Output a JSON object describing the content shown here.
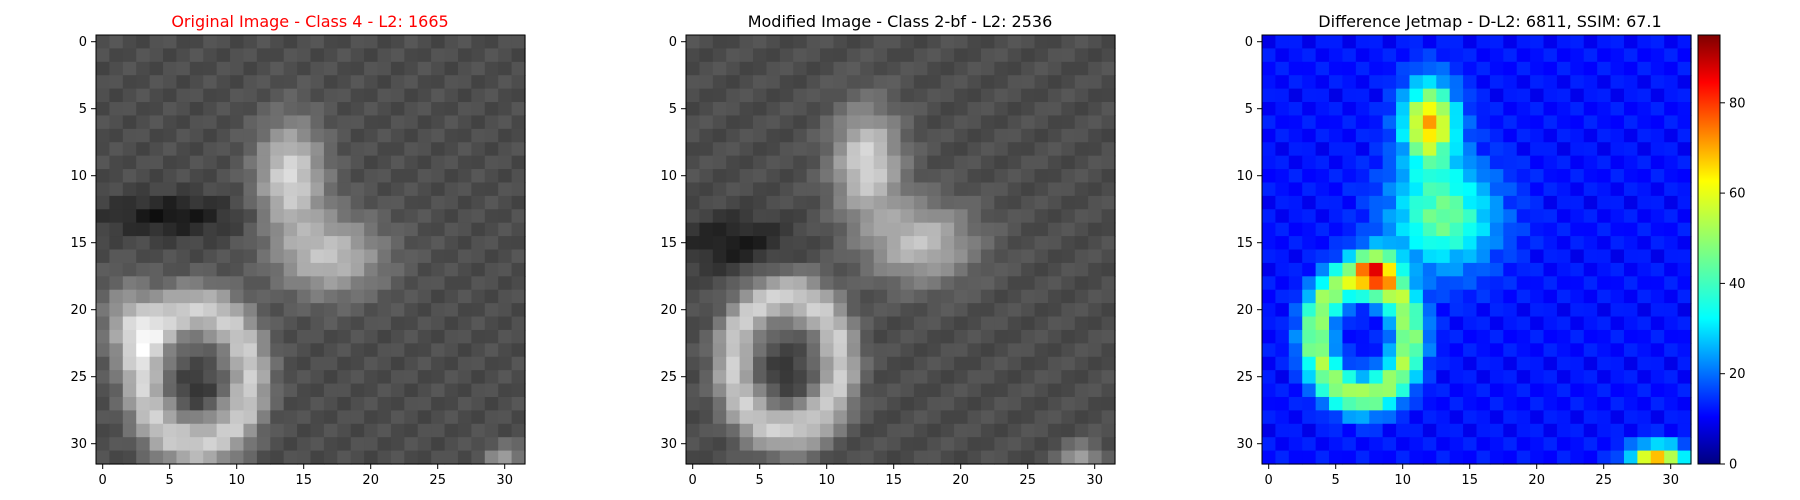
{
  "colors": {
    "original_title": "#ff0000",
    "default_title": "#000000"
  },
  "chart_data": [
    {
      "type": "heatmap",
      "title": "Original Image - Class 4 - L2: 1665",
      "title_color": "#ff0000",
      "colormap": "gray",
      "size": [
        32,
        32
      ],
      "x_ticks": [
        "0",
        "5",
        "10",
        "15",
        "20",
        "25",
        "30"
      ],
      "y_ticks": [
        "0",
        "5",
        "10",
        "15",
        "20",
        "25",
        "30"
      ]
    },
    {
      "type": "heatmap",
      "title": "Modified Image - Class 2-bf - L2: 2536",
      "title_color": "#000000",
      "colormap": "gray",
      "size": [
        32,
        32
      ],
      "x_ticks": [
        "0",
        "5",
        "10",
        "15",
        "20",
        "25",
        "30"
      ],
      "y_ticks": [
        "0",
        "5",
        "10",
        "15",
        "20",
        "25",
        "30"
      ]
    },
    {
      "type": "heatmap",
      "title": "Difference Jetmap - D-L2: 6811, SSIM: 67.1",
      "title_color": "#000000",
      "colormap": "jet",
      "size": [
        32,
        32
      ],
      "x_ticks": [
        "0",
        "5",
        "10",
        "15",
        "20",
        "25",
        "30"
      ],
      "y_ticks": [
        "0",
        "5",
        "10",
        "15",
        "20",
        "25",
        "30"
      ],
      "colorbar": {
        "range": [
          0,
          95
        ],
        "ticks": [
          "0",
          "20",
          "40",
          "60",
          "80"
        ]
      }
    }
  ]
}
